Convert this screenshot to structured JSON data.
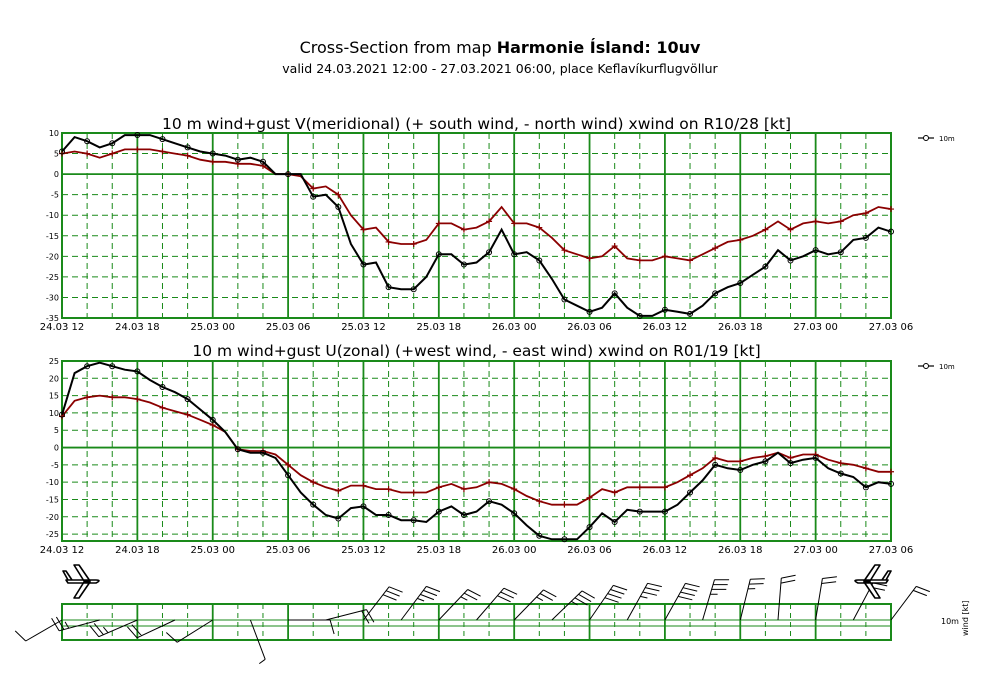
{
  "header": {
    "title_prefix": "Cross-Section from map",
    "title_bold": "Harmonie Ísland: 10uv",
    "subtitle": "valid 24.03.2021 12:00 - 27.03.2021 06:00, place Keflavíkurflugvöllur"
  },
  "colors": {
    "grid": "#1a8a1a",
    "main_series": "#000000",
    "secondary_series": "#8b0000",
    "barb": "#000000"
  },
  "x_tick_labels": [
    "24.03 12",
    "24.03 18",
    "25.03 00",
    "25.03 06",
    "25.03 12",
    "25.03 18",
    "26.03 00",
    "26.03 06",
    "26.03 12",
    "26.03 18",
    "27.03 00",
    "27.03 06"
  ],
  "chart_data": [
    {
      "type": "line",
      "title": "10 m wind+gust V(meridional) (+ south wind, - north wind) xwind on R10/28 [kt]",
      "xlabel": "",
      "ylabel": "",
      "x_hours": [
        0,
        1,
        2,
        3,
        4,
        5,
        6,
        7,
        8,
        9,
        10,
        11,
        12,
        13,
        14,
        15,
        16,
        17,
        18,
        19,
        20,
        21,
        22,
        23,
        24,
        25,
        26,
        27,
        28,
        29,
        30,
        31,
        32,
        33,
        34,
        35,
        36,
        37,
        38,
        39,
        40,
        41,
        42,
        43,
        44,
        45,
        46,
        47,
        48,
        49,
        50,
        51,
        52,
        53,
        54,
        55,
        56,
        57,
        58,
        59,
        60,
        61,
        62,
        63,
        64,
        65,
        66
      ],
      "ylim": [
        -35,
        10
      ],
      "yticks": [
        10,
        5,
        0,
        -5,
        -10,
        -15,
        -20,
        -25,
        -30,
        -35
      ],
      "legend": "10m",
      "series": [
        {
          "name": "10m",
          "values": [
            5.5,
            9,
            8,
            6.5,
            7.5,
            9.5,
            9.5,
            9.5,
            8.5,
            7.5,
            6.5,
            5.5,
            5,
            4.5,
            3.5,
            4,
            3,
            0,
            0,
            0,
            -5.5,
            -5,
            -8,
            -17,
            -22,
            -21.5,
            -27.5,
            -28,
            -28,
            -25,
            -19.5,
            -19.5,
            -22,
            -21.5,
            -19,
            -13.5,
            -19.5,
            -19,
            -21,
            -25.5,
            -30.5,
            -32,
            -33.5,
            -32.5,
            -29,
            -32.5,
            -34.5,
            -34.5,
            -33,
            -33.5,
            -34,
            -32,
            -29,
            -27.5,
            -26.5,
            -24.5,
            -22.5,
            -18.5,
            -21,
            -20,
            -18.5,
            -19.5,
            -19,
            -16,
            -15.5,
            -13,
            -14
          ]
        },
        {
          "name": "gust",
          "values": [
            5,
            5.5,
            5,
            4,
            5,
            6,
            6,
            6,
            5.5,
            5,
            4.5,
            3.5,
            3,
            3,
            2.5,
            2.5,
            2,
            0,
            0,
            -0.5,
            -3.5,
            -3,
            -5,
            -10,
            -13.5,
            -13,
            -16.5,
            -17,
            -17,
            -16,
            -12,
            -12,
            -13.5,
            -13,
            -11.5,
            -8,
            -12,
            -12,
            -13,
            -15.5,
            -18.5,
            -19.5,
            -20.5,
            -20,
            -17.5,
            -20.5,
            -21,
            -21,
            -20,
            -20.5,
            -21,
            -19.5,
            -18,
            -16.5,
            -16,
            -15,
            -13.5,
            -11.5,
            -13.5,
            -12,
            -11.5,
            -12,
            -11.5,
            -10,
            -9.5,
            -8,
            -8.5
          ]
        }
      ]
    },
    {
      "type": "line",
      "title": "10 m wind+gust U(zonal) (+west wind, - east wind) xwind on R01/19 [kt]",
      "xlabel": "",
      "ylabel": "",
      "x_hours": [
        0,
        1,
        2,
        3,
        4,
        5,
        6,
        7,
        8,
        9,
        10,
        11,
        12,
        13,
        14,
        15,
        16,
        17,
        18,
        19,
        20,
        21,
        22,
        23,
        24,
        25,
        26,
        27,
        28,
        29,
        30,
        31,
        32,
        33,
        34,
        35,
        36,
        37,
        38,
        39,
        40,
        41,
        42,
        43,
        44,
        45,
        46,
        47,
        48,
        49,
        50,
        51,
        52,
        53,
        54,
        55,
        56,
        57,
        58,
        59,
        60,
        61,
        62,
        63,
        64,
        65,
        66
      ],
      "ylim": [
        -27,
        25
      ],
      "yticks": [
        25,
        20,
        15,
        10,
        5,
        0,
        -5,
        -10,
        -15,
        -20,
        -25
      ],
      "legend": "10m",
      "series": [
        {
          "name": "10m",
          "values": [
            9.5,
            21.5,
            23.5,
            24.5,
            23.5,
            22.5,
            22,
            19.5,
            17.5,
            16,
            14,
            11,
            8,
            4.5,
            -0.5,
            -1.5,
            -1.5,
            -3,
            -8,
            -13,
            -16.5,
            -19.5,
            -20.5,
            -17.5,
            -17,
            -19.5,
            -19.5,
            -21,
            -21,
            -21.5,
            -18.5,
            -17,
            -19.5,
            -18.5,
            -15.5,
            -16.5,
            -19,
            -22.5,
            -25.5,
            -26.5,
            -26.5,
            -26.5,
            -23,
            -19,
            -21.5,
            -18,
            -18.5,
            -18.5,
            -18.5,
            -16.5,
            -13,
            -9.5,
            -5,
            -6,
            -6.5,
            -5,
            -4,
            -1.5,
            -4.5,
            -3.5,
            -3,
            -6,
            -7.5,
            -8.5,
            -11.5,
            -10,
            -10.5
          ]
        },
        {
          "name": "gust",
          "values": [
            9,
            13.5,
            14.5,
            15,
            14.5,
            14.5,
            14,
            13,
            11.5,
            10.5,
            9.5,
            8,
            6.5,
            4.5,
            -0.5,
            -1,
            -1,
            -2,
            -5,
            -8,
            -10,
            -11.5,
            -12.5,
            -11,
            -11,
            -12,
            -12,
            -13,
            -13,
            -13,
            -11.5,
            -10.5,
            -12,
            -11.5,
            -10,
            -10.5,
            -12,
            -14,
            -15.5,
            -16.5,
            -16.5,
            -16.5,
            -14.5,
            -12,
            -13,
            -11.5,
            -11.5,
            -11.5,
            -11.5,
            -10,
            -8,
            -6,
            -3,
            -4,
            -4,
            -3,
            -2.5,
            -1.5,
            -3,
            -2,
            -2,
            -3.5,
            -4.5,
            -5,
            -6,
            -7,
            -7
          ]
        }
      ]
    }
  ],
  "barbs": {
    "legend_level": "10m",
    "legend_unit": "wind [kt]"
  }
}
